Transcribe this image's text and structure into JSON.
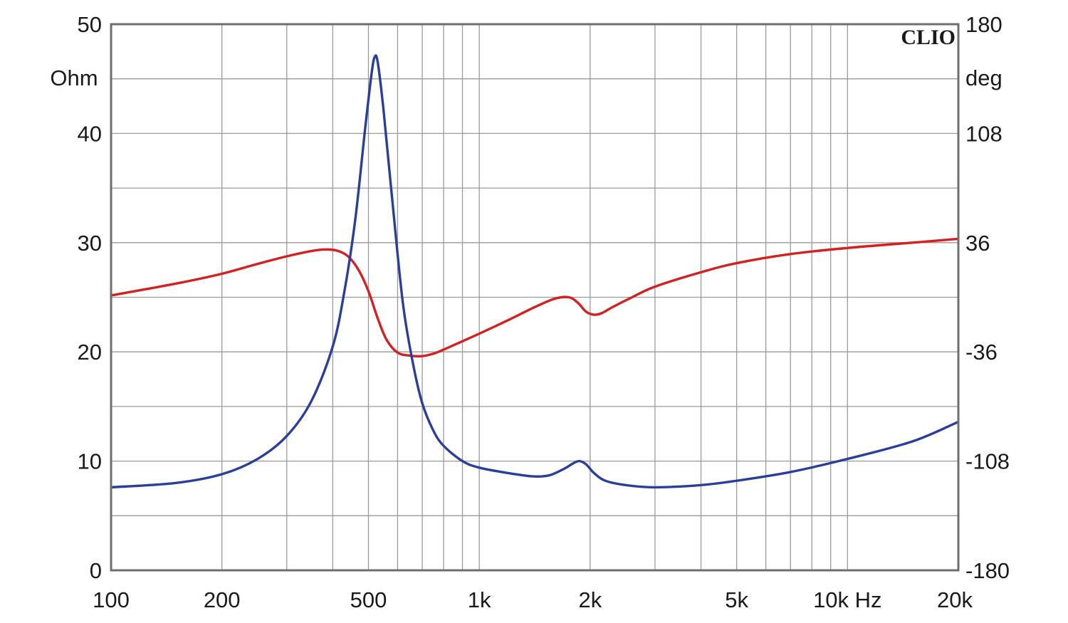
{
  "chart_data": {
    "type": "line",
    "brand": "CLIO",
    "x_scale": "log",
    "xlim": [
      100,
      20000
    ],
    "y_left": {
      "unit": "Ohm",
      "lim": [
        0,
        50
      ],
      "ticks": [
        0,
        10,
        20,
        30,
        40,
        50
      ],
      "tick_labels": [
        "0",
        "10",
        "20",
        "30",
        "40",
        "50"
      ]
    },
    "y_right": {
      "unit": "deg",
      "lim": [
        -180,
        180
      ],
      "ticks": [
        -180,
        -108,
        -36,
        36,
        108,
        180
      ],
      "tick_labels": [
        "-180",
        "-108",
        "-36",
        "36",
        "108",
        "180"
      ]
    },
    "x_ticks": [
      100,
      200,
      500,
      1000,
      2000,
      5000,
      10000,
      20000
    ],
    "x_tick_labels": [
      "100",
      "200",
      "500",
      "1k",
      "2k",
      "5k",
      "10k Hz",
      "20k"
    ],
    "grid": true,
    "colors": {
      "impedance": "#2a3f9a",
      "phase": "#d42020",
      "grid": "#9a9a9a",
      "frame": "#6e6e6e"
    },
    "series": [
      {
        "key": "impedance",
        "axis": "left",
        "color": "#2a3f9a",
        "x": [
          100,
          150,
          200,
          250,
          300,
          350,
          400,
          430,
          460,
          490,
          510,
          520,
          530,
          550,
          580,
          620,
          660,
          700,
          750,
          800,
          900,
          1000,
          1200,
          1400,
          1550,
          1700,
          1800,
          1870,
          1950,
          2050,
          2200,
          2500,
          3000,
          4000,
          5000,
          7000,
          10000,
          15000,
          20000
        ],
        "y": [
          7.6,
          8.0,
          8.8,
          10.2,
          12.3,
          15.5,
          20.5,
          25.5,
          32.0,
          40.5,
          45.5,
          47.0,
          46.5,
          42.0,
          34.0,
          24.5,
          19.0,
          15.3,
          12.8,
          11.4,
          10.0,
          9.4,
          8.9,
          8.6,
          8.7,
          9.3,
          9.8,
          10.0,
          9.7,
          8.9,
          8.2,
          7.8,
          7.6,
          7.8,
          8.2,
          9.0,
          10.2,
          11.8,
          13.6
        ]
      },
      {
        "key": "phase",
        "axis": "right",
        "color": "#d42020",
        "x": [
          100,
          150,
          200,
          250,
          300,
          350,
          380,
          410,
          440,
          470,
          500,
          530,
          560,
          600,
          650,
          700,
          750,
          800,
          900,
          1000,
          1200,
          1400,
          1600,
          1750,
          1850,
          1950,
          2050,
          2150,
          2300,
          2600,
          3000,
          4000,
          5000,
          7000,
          10000,
          15000,
          20000
        ],
        "y": [
          1.2,
          9,
          15.5,
          22,
          27,
          30.5,
          31.5,
          30.8,
          27,
          18,
          4,
          -14,
          -28,
          -36.5,
          -38.5,
          -38.8,
          -37.2,
          -34.5,
          -29,
          -24,
          -15,
          -7,
          -1,
          0,
          -3.5,
          -9.5,
          -11.5,
          -10.5,
          -6.5,
          0,
          7,
          16.5,
          22.5,
          28.5,
          32.5,
          36,
          38.5
        ]
      }
    ]
  }
}
